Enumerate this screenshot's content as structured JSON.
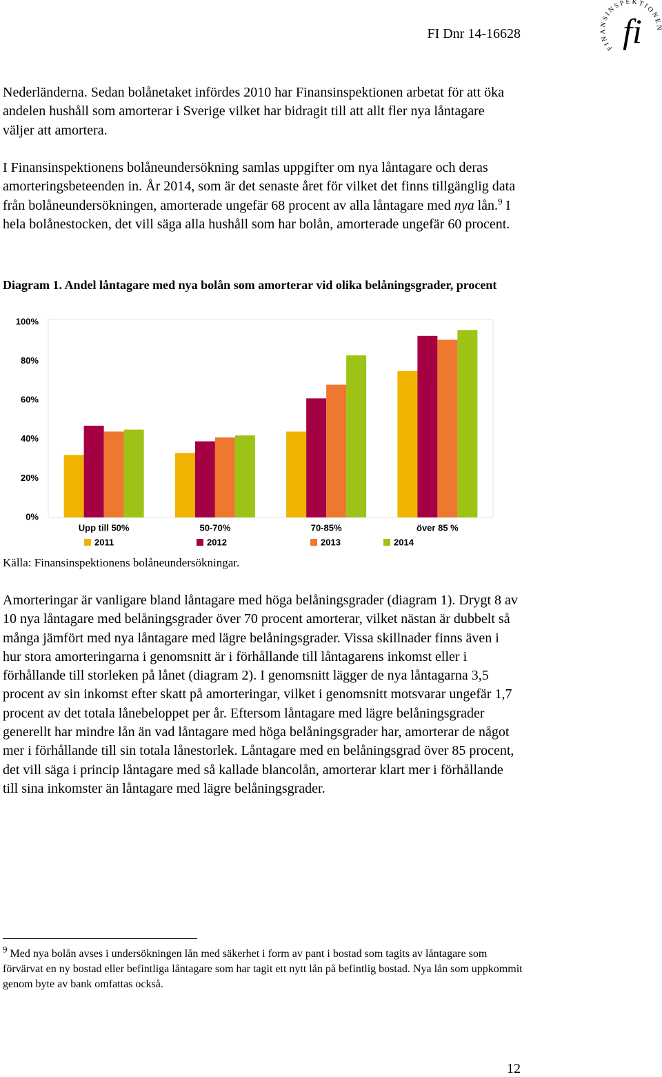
{
  "header": {
    "doc_number": "FI Dnr 14-16628",
    "logo_text": "FINANSINSPEKTIONEN",
    "logo_mark": "fi"
  },
  "paragraph_1": "Nederländerna. Sedan bolånetaket infördes 2010 har Finansinspektionen arbetat för att öka andelen hushåll som amorterar i Sverige vilket har bidragit till att allt fler nya låntagare väljer att amortera.",
  "paragraph_2": {
    "before_italic": "I Finansinspektionens bolåneundersökning samlas uppgifter om nya låntagare och deras amorteringsbeteenden in. År 2014, som är det senaste året för vilket det finns tillgänglig data från bolåneundersökningen, amorterade ungefär 68 procent av alla låntagare med",
    "italic": "nya",
    "after_italic": "lån.",
    "footnote_ref": "9",
    "rest": "I hela bolånestocken, det vill säga alla hushåll som har bolån, amorterade ungefär 60 procent."
  },
  "caption": {
    "label": "Diagram 1.",
    "text": "Andel låntagare med nya bolån som amorterar vid olika belåningsgrader, procent"
  },
  "chart_data": {
    "type": "bar",
    "categories": [
      "Upp till 50%",
      "50-70%",
      "70-85%",
      "över 85 %"
    ],
    "series": [
      {
        "name": "2011",
        "color": "#f0b400",
        "values": [
          32,
          33,
          44,
          75
        ]
      },
      {
        "name": "2012",
        "color": "#a50044",
        "values": [
          47,
          39,
          61,
          93
        ]
      },
      {
        "name": "2013",
        "color": "#ee7830",
        "values": [
          44,
          41,
          68,
          91
        ]
      },
      {
        "name": "2014",
        "color": "#9dc317",
        "values": [
          45,
          42,
          83,
          96
        ]
      }
    ],
    "ylim": [
      0,
      100
    ],
    "yticks": [
      {
        "value": 0,
        "label": "0%"
      },
      {
        "value": 20,
        "label": "20%"
      },
      {
        "value": 40,
        "label": "40%"
      },
      {
        "value": 60,
        "label": "60%"
      },
      {
        "value": 80,
        "label": "80%"
      },
      {
        "value": 100,
        "label": "100%"
      }
    ],
    "grid": false,
    "legend": "bottom"
  },
  "source": "Källa: Finansinspektionens bolåneundersökningar.",
  "paragraph_3": "Amorteringar är vanligare bland låntagare med höga belåningsgrader (diagram 1). Drygt 8 av 10 nya låntagare med belåningsgrader över 70 procent amorterar, vilket nästan är dubbelt så många jämfört med nya låntagare med lägre belåningsgrader. Vissa skillnader finns även i hur stora amorteringarna i genomsnitt är i förhållande till låntagarens inkomst eller i förhållande till storleken på lånet (diagram 2). I genomsnitt lägger de nya låntagarna 3,5 procent av sin inkomst efter skatt på amorteringar, vilket i genomsnitt motsvarar ungefär 1,7 procent av det totala lånebeloppet per år. Eftersom låntagare med lägre belåningsgrader generellt har mindre lån än vad låntagare med höga belåningsgrader har, amorterar de något mer i förhållande till sin totala lånestorlek. Låntagare med en belåningsgrad över 85 procent, det vill säga i princip låntagare med så kallade blancolån, amorterar klart mer i förhållande till sina inkomster än låntagare med lägre belåningsgrader.",
  "footnote": {
    "number": "9",
    "text": "Med nya bolån avses i undersökningen lån med säkerhet i form av pant i bostad som tagits av låntagare som förvärvat en ny bostad eller befintliga låntagare som har tagit ett nytt lån på befintlig bostad. Nya lån som uppkommit genom byte av bank omfattas också."
  },
  "page_number": "12"
}
